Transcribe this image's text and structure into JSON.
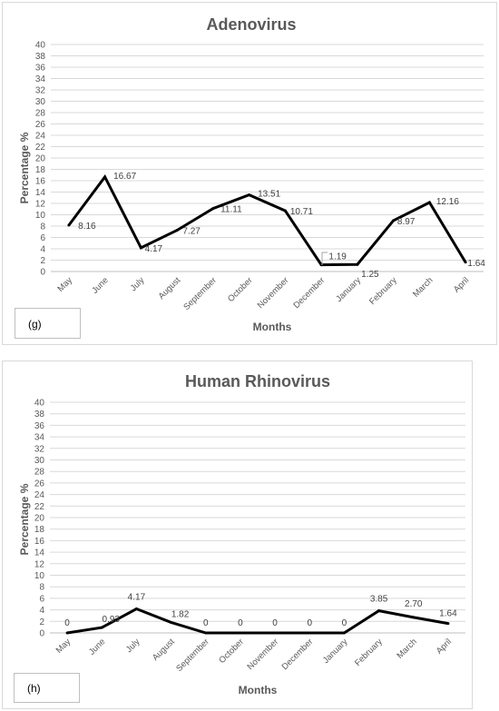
{
  "chart_data": [
    {
      "type": "line",
      "title": "Adenovirus",
      "xlabel": "Months",
      "ylabel": "Percentage %",
      "ylim": [
        0,
        40
      ],
      "ytick_step": 2,
      "grid": true,
      "legend": "none",
      "line_color": "#000000",
      "categories": [
        "May",
        "June",
        "July",
        "August",
        "September",
        "October",
        "November",
        "December",
        "January",
        "February",
        "March",
        "April"
      ],
      "values": [
        8.16,
        16.67,
        4.17,
        7.27,
        11.11,
        13.51,
        10.71,
        1.19,
        1.25,
        8.97,
        12.16,
        1.64
      ],
      "data_labels": [
        "8.16",
        "16.67",
        "4.17",
        "7.27",
        "11.11",
        "13.51",
        "10.71",
        "1.19",
        "1.25",
        "8.97",
        "12.16",
        "1.64"
      ],
      "tag": "(g)"
    },
    {
      "type": "line",
      "title": "Human Rhinovirus",
      "xlabel": "Months",
      "ylabel": "Percentage %",
      "ylim": [
        0,
        40
      ],
      "ytick_step": 2,
      "grid": true,
      "legend": "none",
      "line_color": "#000000",
      "categories": [
        "May",
        "June",
        "July",
        "August",
        "September",
        "October",
        "November",
        "December",
        "January",
        "February",
        "March",
        "April"
      ],
      "values": [
        0,
        0.93,
        4.17,
        1.82,
        0,
        0,
        0,
        0,
        0,
        3.85,
        2.7,
        1.64
      ],
      "data_labels": [
        "0",
        "0.93",
        "4.17",
        "1.82",
        "0",
        "0",
        "0",
        "0",
        "0",
        "3.85",
        "2.70",
        "1.64"
      ],
      "tag": "(h)"
    }
  ]
}
